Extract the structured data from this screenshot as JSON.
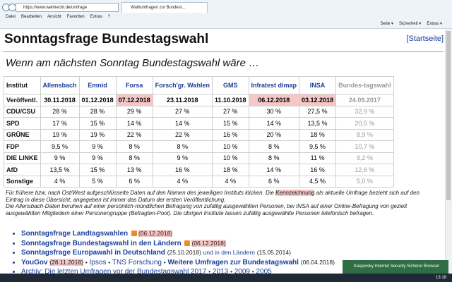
{
  "browser": {
    "url": "https://www.wahlrecht.de/umfrage",
    "tab": "Wahlumfragen zur Bundest...",
    "menu": [
      "Datei",
      "Bearbeiten",
      "Ansicht",
      "Favoriten",
      "Extras",
      "?"
    ],
    "tools": [
      "Seite ▾",
      "Sicherheit ▾",
      "Extras ▾"
    ]
  },
  "header": {
    "title": "Sonntagsfrage Bundestagswahl",
    "home_link": "[Startseite]",
    "subtitle": "Wenn am nächsten Sonntag Bundestagswahl wäre …"
  },
  "table": {
    "columns": [
      "Institut",
      "Allensbach",
      "Emnid",
      "Forsa",
      "Forsch'gr. Wahlen",
      "GMS",
      "Infratest dimap",
      "INSA",
      "Bundes-tagswahl"
    ],
    "published": [
      "Veröffentl.",
      "30.11.2018",
      "01.12.2018",
      "07.12.2018",
      "23.11.2018",
      "11.10.2018",
      "06.12.2018",
      "03.12.2018",
      "24.09.2017"
    ],
    "highlighted": [
      3,
      6,
      7
    ],
    "rows": [
      [
        "CDU/CSU",
        "28 %",
        "28 %",
        "29 %",
        "27 %",
        "27 %",
        "30 %",
        "27,5 %",
        "32,9 %"
      ],
      [
        "SPD",
        "17 %",
        "15 %",
        "14 %",
        "14 %",
        "15 %",
        "14 %",
        "13,5 %",
        "20,5 %"
      ],
      [
        "GRÜNE",
        "19 %",
        "19 %",
        "22 %",
        "22 %",
        "16 %",
        "20 %",
        "18 %",
        "8,9 %"
      ],
      [
        "FDP",
        "9,5 %",
        "9 %",
        "8 %",
        "8 %",
        "10 %",
        "8 %",
        "9,5 %",
        "10,7 %"
      ],
      [
        "DIE LINKE",
        "9 %",
        "9 %",
        "8 %",
        "9 %",
        "10 %",
        "8 %",
        "11 %",
        "9,2 %"
      ],
      [
        "AfD",
        "13,5 %",
        "15 %",
        "13 %",
        "16 %",
        "18 %",
        "14 %",
        "16 %",
        "12,6 %"
      ],
      [
        "Sonstige",
        "4 %",
        "5 %",
        "6 %",
        "4 %",
        "4 %",
        "6 %",
        "4,5 %",
        "5,0 %"
      ]
    ]
  },
  "note": {
    "part1": "Für frühere bzw. nach Ost/West aufgeschlüsselte Daten auf den Namen des jeweiligen Instituts klicken. Die",
    "marker": "Kennzeichnung",
    "part2": "als aktuelle Umfrage bezieht sich auf den Eintrag in diese Übersicht, angegeben ist immer das Datum der ersten Veröffentlichung.",
    "method": "Die Allensbach-Daten beruhen auf einer persönlich-mündlichen Befragung von zufällig ausgewählten Personen, bei INSA auf einer Online-Befragung von gezielt ausgewählten Mitgliedern einer Personengruppe (Befragten-Pool). Die übrigen Institute lassen zufällig ausgewählte Personen telefonisch befragen."
  },
  "links": {
    "sep": "•",
    "landtag": {
      "link": "Sonntagsfrage Landtagswahlen",
      "date": "(06.12.2018)"
    },
    "laender": {
      "link": "Sonntagsfrage Bundestagswahl in den Ländern",
      "date": "(06.12.2018)"
    },
    "europa": {
      "link": "Sonntagsfrage Europawahl in Deutschland",
      "date": "(25.10.2018)",
      "link2": "und in den Ländern",
      "date2": "(15.05.2014)"
    },
    "others": {
      "yougov": "YouGov",
      "yougov_date": "(28.11.2018)",
      "ipsos": "Ipsos",
      "tns": "TNS Forschung",
      "weitere": "Weitere Umfragen zur Bundestagswahl",
      "weitere_date": "(06.04.2018)"
    },
    "archive": {
      "link": "Archiv: Die letzten Umfragen vor der Bundestagswahl 2017",
      "years": [
        "2013",
        "2009",
        "2005"
      ]
    }
  },
  "notification": "Kaspersky Internet Security Sicherer Browser",
  "clock": "13:18"
}
